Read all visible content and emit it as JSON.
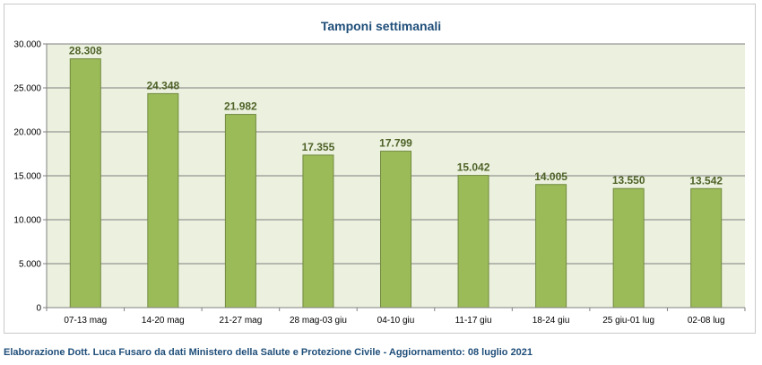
{
  "chart_data": {
    "type": "bar",
    "title": "Tamponi settimanali",
    "categories": [
      "07-13 mag",
      "14-20 mag",
      "21-27 mag",
      "28 mag-03 giu",
      "04-10 giu",
      "11-17 giu",
      "18-24 giu",
      "25 giu-01 lug",
      "02-08 lug"
    ],
    "values": [
      28308,
      24348,
      21982,
      17355,
      17799,
      15042,
      14005,
      13550,
      13542
    ],
    "data_labels": [
      "28.308",
      "24.348",
      "21.982",
      "17.355",
      "17.799",
      "15.042",
      "14.005",
      "13.550",
      "13.542"
    ],
    "ylim": [
      0,
      30000
    ],
    "yticks": [
      0,
      5000,
      10000,
      15000,
      20000,
      25000,
      30000
    ],
    "ytick_labels": [
      "0",
      "5.000",
      "10.000",
      "15.000",
      "20.000",
      "25.000",
      "30.000"
    ],
    "xlabel": "",
    "ylabel": "",
    "grid": true,
    "colors": {
      "bar": "#9bbb59",
      "bar_border": "#71893f",
      "plot_bg": "#ebf1de",
      "grid": "#808080",
      "label": "#4f6228",
      "title": "#1f4e79"
    }
  },
  "footer": "Elaborazione Dott. Luca Fusaro da dati Ministero della Salute e Protezione Civile - Aggiornamento: 08 luglio 2021"
}
